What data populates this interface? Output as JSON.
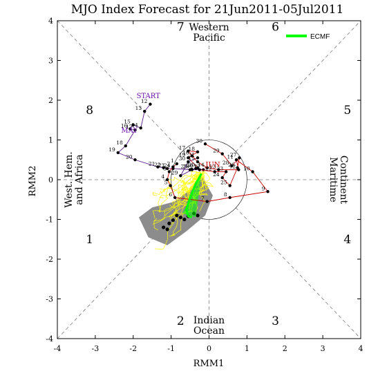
{
  "chart_data": {
    "type": "scatter",
    "title": "MJO Index Forecast for 21Jun2011-05Jul2011",
    "xlabel": "RMM1",
    "ylabel": "RMM2",
    "xlim": [
      -4,
      4
    ],
    "ylim": [
      -4,
      4
    ],
    "xticks": [
      "-4",
      "-3",
      "-2",
      "-1",
      "0",
      "1",
      "2",
      "3",
      "4"
    ],
    "yticks": [
      "-4",
      "-3",
      "-2",
      "-1",
      "0",
      "1",
      "2",
      "3",
      "4"
    ],
    "phase_numbers": [
      {
        "label": "7",
        "x": -0.75,
        "y": 3.75
      },
      {
        "label": "6",
        "x": 1.75,
        "y": 3.75
      },
      {
        "label": "8",
        "x": -3.15,
        "y": 1.65
      },
      {
        "label": "5",
        "x": 3.65,
        "y": 1.65
      },
      {
        "label": "1",
        "x": -3.15,
        "y": -1.6
      },
      {
        "label": "4",
        "x": 3.65,
        "y": -1.6
      },
      {
        "label": "2",
        "x": -0.75,
        "y": -3.65
      },
      {
        "label": "3",
        "x": 1.75,
        "y": -3.65
      }
    ],
    "region_labels": {
      "top": [
        "Western",
        "Pacific"
      ],
      "bottom": [
        "Indian",
        "Ocean"
      ],
      "left": [
        "West. Hem.",
        "and Africa"
      ],
      "right": [
        "Maritime",
        "Continent"
      ]
    },
    "month_labels": [
      {
        "text": "START",
        "x": -1.6,
        "y": 2.05,
        "color": "#6a0dad"
      },
      {
        "text": "MAY",
        "x": -2.1,
        "y": 1.18,
        "color": "#6a0dad"
      },
      {
        "text": "JUN",
        "x": 0.1,
        "y": 0.32,
        "color": "#cc0000"
      }
    ],
    "legend": {
      "label": "ECMF",
      "color": "#00ff00",
      "position": "top-right"
    },
    "series": [
      {
        "name": "MAY",
        "color": "#5a1a8c",
        "points": [
          {
            "day": "12",
            "x": -1.55,
            "y": 1.9
          },
          {
            "day": "13",
            "x": -1.7,
            "y": 1.72
          },
          {
            "day": "14",
            "x": -1.8,
            "y": 1.3
          },
          {
            "day": "15",
            "x": -2.0,
            "y": 1.38
          },
          {
            "day": "16",
            "x": -2.08,
            "y": 1.28
          },
          {
            "day": "17",
            "x": -1.95,
            "y": 1.25
          },
          {
            "day": "18",
            "x": -2.2,
            "y": 0.85
          },
          {
            "day": "19",
            "x": -2.4,
            "y": 0.68
          },
          {
            "day": "20",
            "x": -1.95,
            "y": 0.5
          },
          {
            "day": "21",
            "x": -1.35,
            "y": 0.32
          },
          {
            "day": "22",
            "x": -1.2,
            "y": 0.3
          },
          {
            "day": "23",
            "x": -1.1,
            "y": 0.28
          },
          {
            "day": "24",
            "x": -0.95,
            "y": 0.28
          },
          {
            "day": "25",
            "x": -0.5,
            "y": 0.25
          },
          {
            "day": "26",
            "x": -0.35,
            "y": 0.28
          },
          {
            "day": "27",
            "x": -0.15,
            "y": 0.25
          },
          {
            "day": "28",
            "x": -0.45,
            "y": 0.25
          },
          {
            "day": "29",
            "x": -0.75,
            "y": 0.1
          },
          {
            "day": "30",
            "x": -0.55,
            "y": 0.45
          },
          {
            "day": "31",
            "x": -0.3,
            "y": 0.55
          }
        ]
      },
      {
        "name": "JUN",
        "color": "#cc0000",
        "points": [
          {
            "day": "1",
            "x": -0.85,
            "y": 0.4
          },
          {
            "day": "2",
            "x": -0.95,
            "y": 0.32
          },
          {
            "day": "3",
            "x": -1.05,
            "y": 0.2
          },
          {
            "day": "4",
            "x": -1.1,
            "y": 0.0
          },
          {
            "day": "5",
            "x": -1.02,
            "y": -0.15
          },
          {
            "day": "6",
            "x": -0.9,
            "y": -0.45
          },
          {
            "day": "7",
            "x": -0.05,
            "y": -0.55
          },
          {
            "day": "8",
            "x": 0.55,
            "y": -0.45
          },
          {
            "day": "9",
            "x": 1.55,
            "y": -0.3
          },
          {
            "day": "10",
            "x": 1.15,
            "y": 0.2
          },
          {
            "day": "11",
            "x": 0.72,
            "y": 0.5
          },
          {
            "day": "12",
            "x": 0.78,
            "y": 0.25
          },
          {
            "day": "13",
            "x": 0.25,
            "y": 0.25
          },
          {
            "day": "14",
            "x": -0.05,
            "y": 0.3
          },
          {
            "day": "15",
            "x": -0.3,
            "y": 0.45
          },
          {
            "day": "16",
            "x": -0.45,
            "y": 0.6
          },
          {
            "day": "17",
            "x": -0.55,
            "y": 0.72
          },
          {
            "day": "18",
            "x": -0.3,
            "y": 0.7
          },
          {
            "day": "19",
            "x": -0.55,
            "y": 0.55
          },
          {
            "day": "20",
            "x": -0.3,
            "y": 0.3
          },
          {
            "day": "21",
            "x": -0.25,
            "y": 0.25
          },
          {
            "day": "22",
            "x": 0.15,
            "y": 0.2
          },
          {
            "day": "23",
            "x": 0.45,
            "y": 0.2
          },
          {
            "day": "24",
            "x": 0.35,
            "y": 0.05
          },
          {
            "day": "25",
            "x": 0.55,
            "y": -0.15
          },
          {
            "day": "26",
            "x": 0.75,
            "y": 0.3
          },
          {
            "day": "27",
            "x": 0.8,
            "y": 0.55
          },
          {
            "day": "28",
            "x": 0.6,
            "y": 0.35
          },
          {
            "day": "29",
            "x": 0.35,
            "y": 0.65
          },
          {
            "day": "30",
            "x": -0.1,
            "y": 0.9
          }
        ]
      },
      {
        "name": "ECMF",
        "color": "#00ff00",
        "points": [
          {
            "x": -0.2,
            "y": 0.15
          },
          {
            "x": -0.35,
            "y": -0.1
          },
          {
            "x": -0.5,
            "y": -0.45
          },
          {
            "x": -0.6,
            "y": -0.75
          },
          {
            "x": -0.55,
            "y": -0.92
          },
          {
            "x": -0.45,
            "y": -0.95
          }
        ]
      }
    ],
    "ensemble_endpoints": [
      {
        "x": -1.2,
        "y": -1.2
      },
      {
        "x": -1.05,
        "y": -1.1
      },
      {
        "x": -0.95,
        "y": -1.02
      },
      {
        "x": -0.85,
        "y": -0.9
      },
      {
        "x": -0.75,
        "y": -0.95
      },
      {
        "x": -0.65,
        "y": -1.0
      },
      {
        "x": -0.55,
        "y": -0.92
      },
      {
        "x": -0.4,
        "y": -0.85
      },
      {
        "x": -0.3,
        "y": -0.9
      },
      {
        "x": -1.1,
        "y": -1.25
      }
    ],
    "colors": {
      "axis": "#000000",
      "guides": "#7a7a7a",
      "spread_fill": "#8c8c8c",
      "ensemble": "#ffff00",
      "mean_plume": "#00ff00"
    }
  }
}
